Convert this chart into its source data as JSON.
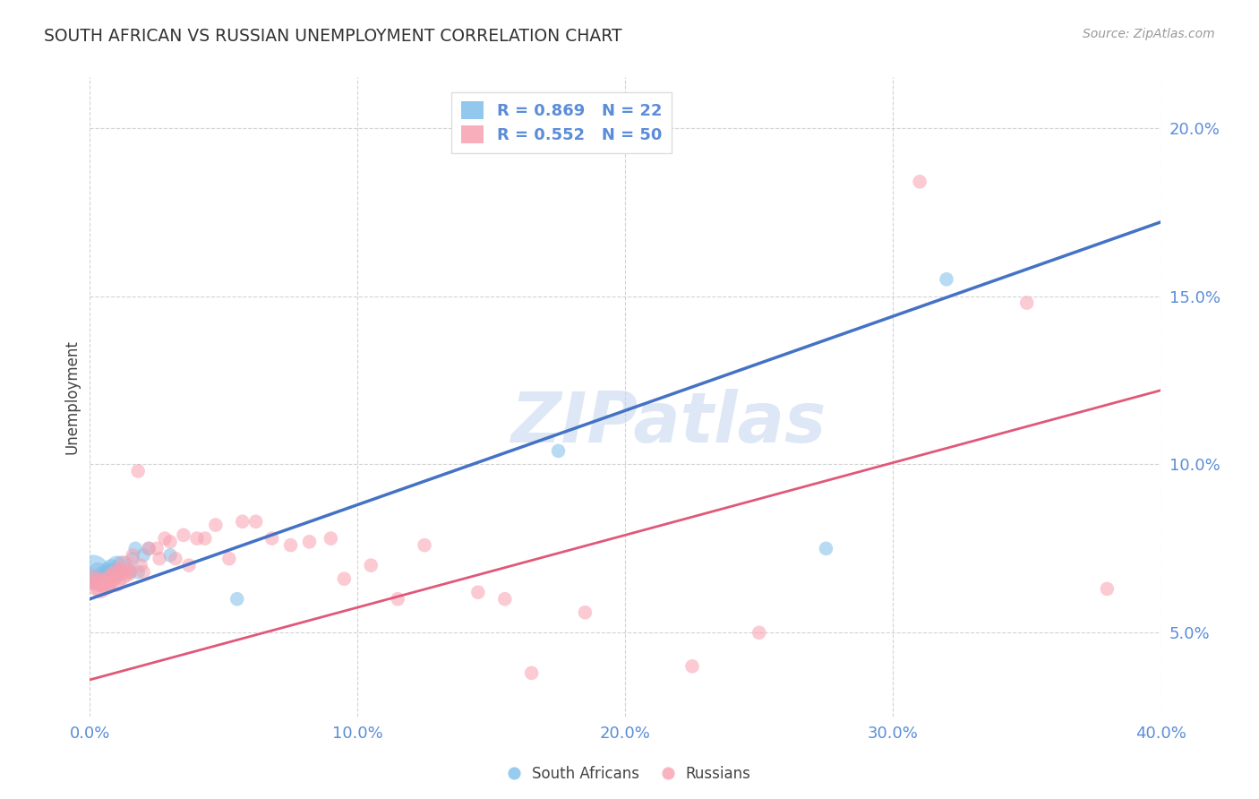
{
  "title": "SOUTH AFRICAN VS RUSSIAN UNEMPLOYMENT CORRELATION CHART",
  "source": "Source: ZipAtlas.com",
  "ylabel": "Unemployment",
  "xlabel": "",
  "xlim": [
    0.0,
    0.4
  ],
  "ylim": [
    0.025,
    0.215
  ],
  "yticks": [
    0.05,
    0.1,
    0.15,
    0.2
  ],
  "ytick_labels": [
    "5.0%",
    "10.0%",
    "15.0%",
    "20.0%"
  ],
  "xticks": [
    0.0,
    0.1,
    0.2,
    0.3,
    0.4
  ],
  "xtick_labels": [
    "0.0%",
    "10.0%",
    "20.0%",
    "30.0%",
    "40.0%"
  ],
  "legend_entries": [
    {
      "label": "R = 0.869   N = 22",
      "color": "#7fbfea"
    },
    {
      "label": "R = 0.552   N = 50",
      "color": "#f8a0b0"
    }
  ],
  "blue_line": {
    "x0": 0.0,
    "y0": 0.06,
    "x1": 0.4,
    "y1": 0.172
  },
  "pink_line": {
    "x0": 0.0,
    "y0": 0.036,
    "x1": 0.4,
    "y1": 0.122
  },
  "blue_scatter": [
    [
      0.001,
      0.068
    ],
    [
      0.002,
      0.066
    ],
    [
      0.003,
      0.068
    ],
    [
      0.004,
      0.065
    ],
    [
      0.005,
      0.067
    ],
    [
      0.006,
      0.066
    ],
    [
      0.007,
      0.068
    ],
    [
      0.008,
      0.069
    ],
    [
      0.009,
      0.068
    ],
    [
      0.01,
      0.07
    ],
    [
      0.012,
      0.07
    ],
    [
      0.015,
      0.068
    ],
    [
      0.016,
      0.072
    ],
    [
      0.017,
      0.075
    ],
    [
      0.018,
      0.068
    ],
    [
      0.02,
      0.073
    ],
    [
      0.022,
      0.075
    ],
    [
      0.03,
      0.073
    ],
    [
      0.055,
      0.06
    ],
    [
      0.175,
      0.104
    ],
    [
      0.275,
      0.075
    ],
    [
      0.32,
      0.155
    ]
  ],
  "pink_scatter": [
    [
      0.001,
      0.066
    ],
    [
      0.002,
      0.064
    ],
    [
      0.003,
      0.065
    ],
    [
      0.004,
      0.063
    ],
    [
      0.005,
      0.065
    ],
    [
      0.006,
      0.064
    ],
    [
      0.007,
      0.065
    ],
    [
      0.008,
      0.066
    ],
    [
      0.009,
      0.067
    ],
    [
      0.01,
      0.065
    ],
    [
      0.011,
      0.068
    ],
    [
      0.012,
      0.067
    ],
    [
      0.013,
      0.07
    ],
    [
      0.014,
      0.068
    ],
    [
      0.015,
      0.068
    ],
    [
      0.016,
      0.073
    ],
    [
      0.018,
      0.098
    ],
    [
      0.019,
      0.07
    ],
    [
      0.02,
      0.068
    ],
    [
      0.022,
      0.075
    ],
    [
      0.025,
      0.075
    ],
    [
      0.026,
      0.072
    ],
    [
      0.028,
      0.078
    ],
    [
      0.03,
      0.077
    ],
    [
      0.032,
      0.072
    ],
    [
      0.035,
      0.079
    ],
    [
      0.037,
      0.07
    ],
    [
      0.04,
      0.078
    ],
    [
      0.043,
      0.078
    ],
    [
      0.047,
      0.082
    ],
    [
      0.052,
      0.072
    ],
    [
      0.057,
      0.083
    ],
    [
      0.062,
      0.083
    ],
    [
      0.068,
      0.078
    ],
    [
      0.075,
      0.076
    ],
    [
      0.082,
      0.077
    ],
    [
      0.09,
      0.078
    ],
    [
      0.095,
      0.066
    ],
    [
      0.105,
      0.07
    ],
    [
      0.115,
      0.06
    ],
    [
      0.125,
      0.076
    ],
    [
      0.145,
      0.062
    ],
    [
      0.155,
      0.06
    ],
    [
      0.165,
      0.038
    ],
    [
      0.185,
      0.056
    ],
    [
      0.225,
      0.04
    ],
    [
      0.25,
      0.05
    ],
    [
      0.31,
      0.184
    ],
    [
      0.35,
      0.148
    ],
    [
      0.38,
      0.063
    ]
  ],
  "blue_color": "#7fbfea",
  "pink_color": "#f8a0b0",
  "blue_line_color": "#4472c4",
  "pink_line_color": "#e05878",
  "watermark": "ZIPatlas",
  "background_color": "#ffffff",
  "grid_color": "#c8c8c8",
  "axis_color": "#5b8dd9",
  "title_color": "#333333"
}
